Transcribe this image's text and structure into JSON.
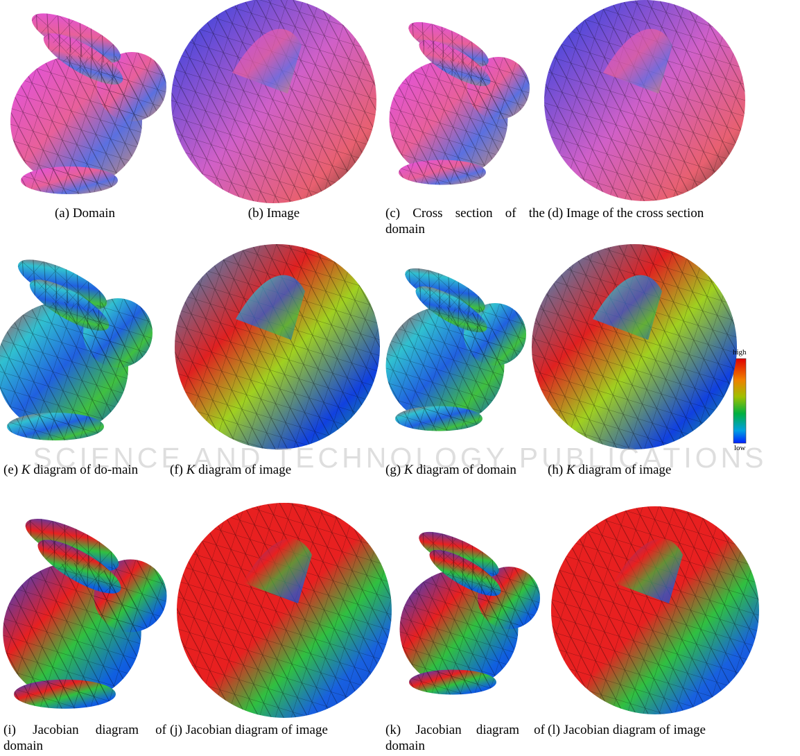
{
  "figures": [
    {
      "label": "(a)",
      "caption": "Domain"
    },
    {
      "label": "(b)",
      "caption": "Image"
    },
    {
      "label": "(c)",
      "caption": "Cross section of the domain"
    },
    {
      "label": "(d)",
      "caption": "Image of the cross section"
    },
    {
      "label": "(e)",
      "symbol": "K",
      "caption": "diagram of do-main"
    },
    {
      "label": "(f)",
      "symbol": "K",
      "caption": "diagram of image"
    },
    {
      "label": "(g)",
      "symbol": "K",
      "caption": "diagram of domain"
    },
    {
      "label": "(h)",
      "symbol": "K",
      "caption": "diagram of image"
    },
    {
      "label": "(i)",
      "caption": "Jacobian diagram of domain"
    },
    {
      "label": "(j)",
      "caption": "Jacobian diagram of image"
    },
    {
      "label": "(k)",
      "caption": "Jacobian diagram of domain"
    },
    {
      "label": "(l)",
      "caption": "Jacobian diagram of image"
    }
  ],
  "colorbar": {
    "high": "high",
    "low": "low"
  },
  "watermark": "SCIENCE AND TECHNOLOGY PUBLICATIONS"
}
